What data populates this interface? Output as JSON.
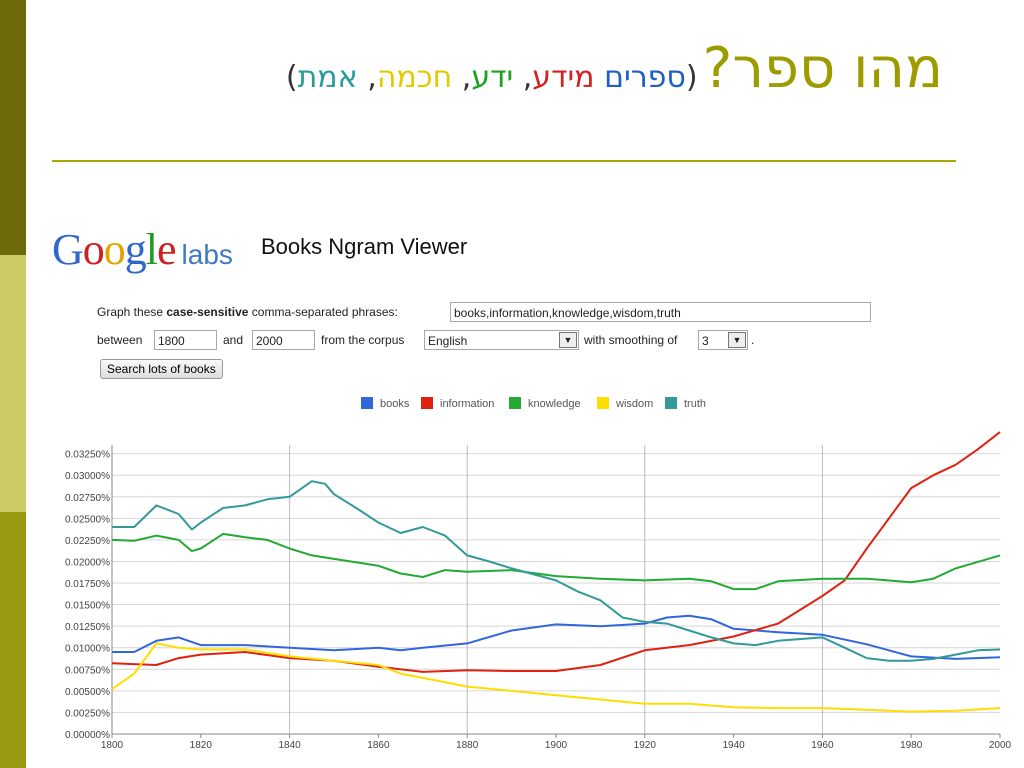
{
  "slide": {
    "title_main": "מהו ספר?",
    "paren_open": "(",
    "paren_close": ")",
    "sep": ", ",
    "sub_words": [
      {
        "text": "ספרים",
        "color": "#1f5fc5"
      },
      {
        "text": "מידע",
        "color": "#d42020"
      },
      {
        "text": "ידע",
        "color": "#1aa01a"
      },
      {
        "text": "חכמה",
        "color": "#e6c800"
      },
      {
        "text": "אמת",
        "color": "#2a9a9a"
      }
    ]
  },
  "logo": {
    "letters": [
      {
        "ch": "G",
        "color": "#3366cc"
      },
      {
        "ch": "o",
        "color": "#cc2222"
      },
      {
        "ch": "o",
        "color": "#e3a400"
      },
      {
        "ch": "g",
        "color": "#3366cc"
      },
      {
        "ch": "l",
        "color": "#229922"
      },
      {
        "ch": "e",
        "color": "#cc2222"
      }
    ],
    "labs": "labs"
  },
  "viewer_title": "Books Ngram Viewer",
  "form": {
    "phrase_label_a": "Graph these ",
    "phrase_label_b": "case-sensitive",
    "phrase_label_c": " comma-separated phrases:",
    "phrases_value": "books,information,knowledge,wisdom,truth",
    "between_label": "between",
    "start_year": "1800",
    "and_label": "and",
    "end_year": "2000",
    "corpus_label": "from the corpus",
    "corpus_value": "English",
    "smoothing_label": "with smoothing of",
    "smoothing_value": "3",
    "period": ".",
    "search_button": "Search lots of books"
  },
  "chart_data": {
    "type": "line",
    "title": "",
    "xlabel": "",
    "ylabel": "",
    "xlim": [
      1800,
      2000
    ],
    "ylim": [
      0,
      0.0335
    ],
    "x_ticks": [
      "1800",
      "1820",
      "1840",
      "1860",
      "1880",
      "1900",
      "1920",
      "1940",
      "1960",
      "1980",
      "2000"
    ],
    "y_ticks": [
      "0.00000%",
      "0.00250%",
      "0.00500%",
      "0.00750%",
      "0.01000%",
      "0.01250%",
      "0.01500%",
      "0.01750%",
      "0.02000%",
      "0.02250%",
      "0.02500%",
      "0.02750%",
      "0.03000%",
      "0.03250%"
    ],
    "grid": true,
    "legend": "top-center",
    "series": [
      {
        "name": "books",
        "color": "#3366dd",
        "points": [
          [
            1800,
            0.0095
          ],
          [
            1805,
            0.0095
          ],
          [
            1810,
            0.0108
          ],
          [
            1815,
            0.0112
          ],
          [
            1820,
            0.0103
          ],
          [
            1830,
            0.0103
          ],
          [
            1840,
            0.01
          ],
          [
            1850,
            0.0097
          ],
          [
            1860,
            0.01
          ],
          [
            1865,
            0.0097
          ],
          [
            1870,
            0.01
          ],
          [
            1880,
            0.0105
          ],
          [
            1890,
            0.012
          ],
          [
            1900,
            0.0127
          ],
          [
            1910,
            0.0125
          ],
          [
            1920,
            0.0128
          ],
          [
            1925,
            0.0135
          ],
          [
            1930,
            0.0137
          ],
          [
            1935,
            0.0133
          ],
          [
            1940,
            0.0122
          ],
          [
            1950,
            0.0118
          ],
          [
            1960,
            0.0115
          ],
          [
            1970,
            0.0104
          ],
          [
            1980,
            0.009
          ],
          [
            1990,
            0.0087
          ],
          [
            2000,
            0.0089
          ]
        ]
      },
      {
        "name": "information",
        "color": "#dd2211",
        "points": [
          [
            1800,
            0.0082
          ],
          [
            1810,
            0.008
          ],
          [
            1815,
            0.0088
          ],
          [
            1820,
            0.0092
          ],
          [
            1830,
            0.0095
          ],
          [
            1840,
            0.0088
          ],
          [
            1850,
            0.0085
          ],
          [
            1860,
            0.0078
          ],
          [
            1870,
            0.0072
          ],
          [
            1880,
            0.0074
          ],
          [
            1890,
            0.0073
          ],
          [
            1900,
            0.0073
          ],
          [
            1910,
            0.008
          ],
          [
            1920,
            0.0097
          ],
          [
            1930,
            0.0103
          ],
          [
            1940,
            0.0113
          ],
          [
            1950,
            0.0128
          ],
          [
            1960,
            0.016
          ],
          [
            1965,
            0.0178
          ],
          [
            1970,
            0.0215
          ],
          [
            1975,
            0.025
          ],
          [
            1980,
            0.0285
          ],
          [
            1985,
            0.03
          ],
          [
            1990,
            0.0312
          ],
          [
            1995,
            0.033
          ],
          [
            2000,
            0.035
          ]
        ]
      },
      {
        "name": "knowledge",
        "color": "#22aa33",
        "points": [
          [
            1800,
            0.0225
          ],
          [
            1805,
            0.0224
          ],
          [
            1810,
            0.023
          ],
          [
            1815,
            0.0225
          ],
          [
            1818,
            0.0212
          ],
          [
            1820,
            0.0215
          ],
          [
            1825,
            0.0232
          ],
          [
            1830,
            0.0228
          ],
          [
            1835,
            0.0225
          ],
          [
            1840,
            0.0215
          ],
          [
            1845,
            0.0207
          ],
          [
            1850,
            0.0203
          ],
          [
            1860,
            0.0195
          ],
          [
            1865,
            0.0186
          ],
          [
            1870,
            0.0182
          ],
          [
            1875,
            0.019
          ],
          [
            1880,
            0.0188
          ],
          [
            1890,
            0.019
          ],
          [
            1900,
            0.0183
          ],
          [
            1910,
            0.018
          ],
          [
            1920,
            0.0178
          ],
          [
            1930,
            0.018
          ],
          [
            1935,
            0.0177
          ],
          [
            1940,
            0.0168
          ],
          [
            1945,
            0.0168
          ],
          [
            1950,
            0.0177
          ],
          [
            1960,
            0.018
          ],
          [
            1970,
            0.018
          ],
          [
            1980,
            0.0176
          ],
          [
            1985,
            0.018
          ],
          [
            1990,
            0.0192
          ],
          [
            2000,
            0.0207
          ]
        ]
      },
      {
        "name": "wisdom",
        "color": "#ffdd00",
        "points": [
          [
            1800,
            0.0052
          ],
          [
            1805,
            0.007
          ],
          [
            1810,
            0.0105
          ],
          [
            1815,
            0.01
          ],
          [
            1820,
            0.0098
          ],
          [
            1830,
            0.0098
          ],
          [
            1840,
            0.009
          ],
          [
            1850,
            0.0085
          ],
          [
            1860,
            0.008
          ],
          [
            1865,
            0.007
          ],
          [
            1870,
            0.0065
          ],
          [
            1880,
            0.0055
          ],
          [
            1890,
            0.005
          ],
          [
            1900,
            0.0045
          ],
          [
            1910,
            0.004
          ],
          [
            1920,
            0.0035
          ],
          [
            1930,
            0.0035
          ],
          [
            1940,
            0.0031
          ],
          [
            1950,
            0.003
          ],
          [
            1960,
            0.003
          ],
          [
            1970,
            0.0028
          ],
          [
            1980,
            0.0026
          ],
          [
            1990,
            0.0027
          ],
          [
            2000,
            0.003
          ]
        ]
      },
      {
        "name": "truth",
        "color": "#339999",
        "points": [
          [
            1800,
            0.024
          ],
          [
            1805,
            0.024
          ],
          [
            1810,
            0.0265
          ],
          [
            1815,
            0.0255
          ],
          [
            1818,
            0.0237
          ],
          [
            1820,
            0.0245
          ],
          [
            1825,
            0.0262
          ],
          [
            1830,
            0.0265
          ],
          [
            1835,
            0.0272
          ],
          [
            1840,
            0.0275
          ],
          [
            1845,
            0.0293
          ],
          [
            1848,
            0.029
          ],
          [
            1850,
            0.0278
          ],
          [
            1855,
            0.0262
          ],
          [
            1860,
            0.0245
          ],
          [
            1865,
            0.0233
          ],
          [
            1870,
            0.024
          ],
          [
            1875,
            0.023
          ],
          [
            1880,
            0.0207
          ],
          [
            1885,
            0.02
          ],
          [
            1890,
            0.0192
          ],
          [
            1895,
            0.0185
          ],
          [
            1900,
            0.0178
          ],
          [
            1905,
            0.0165
          ],
          [
            1910,
            0.0155
          ],
          [
            1915,
            0.0135
          ],
          [
            1920,
            0.013
          ],
          [
            1925,
            0.0128
          ],
          [
            1930,
            0.012
          ],
          [
            1935,
            0.0112
          ],
          [
            1940,
            0.0105
          ],
          [
            1945,
            0.0103
          ],
          [
            1950,
            0.0108
          ],
          [
            1960,
            0.0112
          ],
          [
            1965,
            0.01
          ],
          [
            1970,
            0.0088
          ],
          [
            1975,
            0.0085
          ],
          [
            1980,
            0.0085
          ],
          [
            1985,
            0.0087
          ],
          [
            1990,
            0.0092
          ],
          [
            1995,
            0.0097
          ],
          [
            2000,
            0.0098
          ]
        ]
      }
    ]
  }
}
